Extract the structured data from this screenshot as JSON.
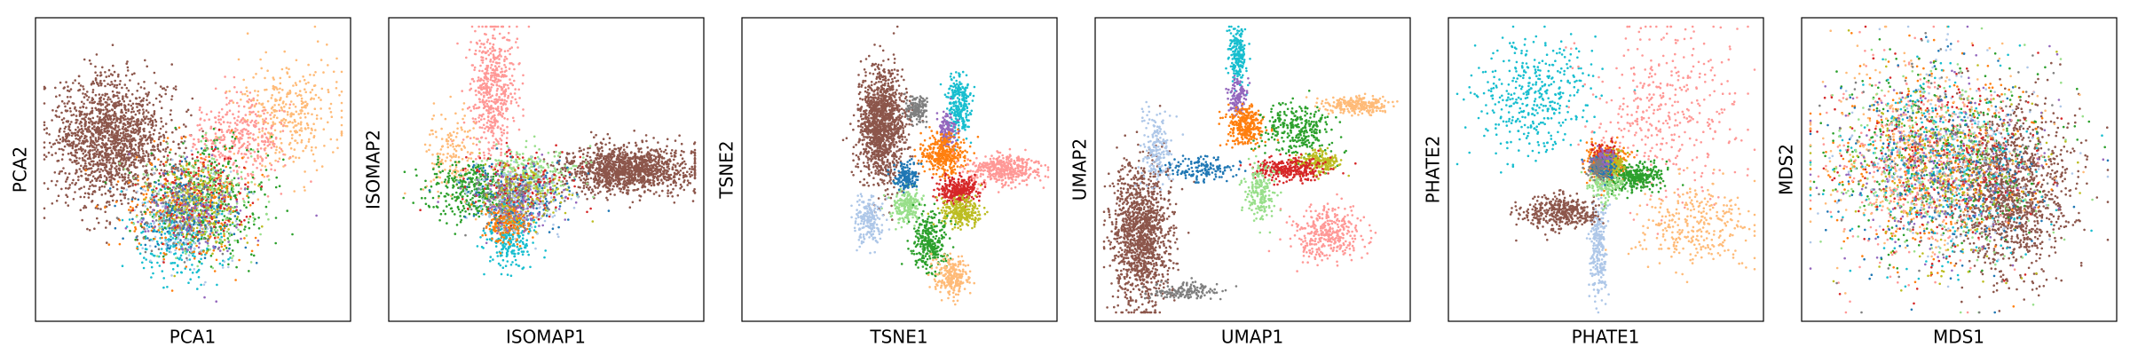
{
  "figure": {
    "background": "#ffffff",
    "palette": {
      "blue": "#1f77b4",
      "light_blue": "#aec7e8",
      "orange": "#ff7f0e",
      "light_orange": "#ffbb78",
      "green": "#2ca02c",
      "light_green": "#98df8a",
      "red": "#d62728",
      "pink": "#ff9896",
      "purple": "#9467bd",
      "brown": "#8c564b",
      "gray": "#7f7f7f",
      "olive": "#bcbd22",
      "cyan": "#17becf"
    }
  },
  "chart_data": [
    {
      "type": "scatter",
      "xlabel": "PCA1",
      "ylabel": "PCA2",
      "ticks": "none",
      "legend": "none",
      "clusters": [
        {
          "color": "brown",
          "cx": -0.55,
          "cy": 0.2,
          "sx": 0.2,
          "sy": 0.22,
          "n": 1600
        },
        {
          "color": "light_orange",
          "cx": 0.65,
          "cy": 0.4,
          "sx": 0.18,
          "sy": 0.2,
          "n": 350
        },
        {
          "color": "pink",
          "cx": 0.3,
          "cy": 0.22,
          "sx": 0.15,
          "sy": 0.16,
          "n": 350
        },
        {
          "color": "cyan",
          "cx": -0.1,
          "cy": -0.5,
          "sx": 0.15,
          "sy": 0.15,
          "n": 250
        },
        {
          "color": "green",
          "cx": 0.1,
          "cy": -0.2,
          "sx": 0.2,
          "sy": 0.2,
          "n": 350
        },
        {
          "color": "orange",
          "cx": -0.05,
          "cy": -0.25,
          "sx": 0.2,
          "sy": 0.2,
          "n": 300
        },
        {
          "color": "light_green",
          "cx": 0.05,
          "cy": -0.2,
          "sx": 0.2,
          "sy": 0.18,
          "n": 250
        },
        {
          "color": "light_blue",
          "cx": -0.05,
          "cy": -0.35,
          "sx": 0.15,
          "sy": 0.15,
          "n": 200
        },
        {
          "color": "olive",
          "cx": 0.0,
          "cy": -0.25,
          "sx": 0.15,
          "sy": 0.15,
          "n": 200
        },
        {
          "color": "blue",
          "cx": -0.05,
          "cy": -0.28,
          "sx": 0.18,
          "sy": 0.16,
          "n": 150
        },
        {
          "color": "red",
          "cx": 0.05,
          "cy": -0.22,
          "sx": 0.18,
          "sy": 0.18,
          "n": 150
        },
        {
          "color": "purple",
          "cx": 0.0,
          "cy": -0.3,
          "sx": 0.18,
          "sy": 0.18,
          "n": 120
        },
        {
          "color": "gray",
          "cx": -0.1,
          "cy": -0.25,
          "sx": 0.15,
          "sy": 0.15,
          "n": 100
        }
      ]
    },
    {
      "type": "scatter",
      "xlabel": "ISOMAP1",
      "ylabel": "ISOMAP2",
      "ticks": "none",
      "legend": "none",
      "clusters": [
        {
          "color": "pink",
          "cx": -0.35,
          "cy": 0.55,
          "sx": 0.08,
          "sy": 0.25,
          "n": 550
        },
        {
          "color": "brown",
          "cx": 0.55,
          "cy": 0.0,
          "sx": 0.22,
          "sy": 0.08,
          "n": 1300
        },
        {
          "color": "light_orange",
          "cx": -0.65,
          "cy": 0.1,
          "sx": 0.08,
          "sy": 0.15,
          "n": 150
        },
        {
          "color": "green",
          "cx": -0.5,
          "cy": -0.15,
          "sx": 0.15,
          "sy": 0.1,
          "n": 350
        },
        {
          "color": "light_green",
          "cx": -0.1,
          "cy": -0.05,
          "sx": 0.15,
          "sy": 0.1,
          "n": 300
        },
        {
          "color": "cyan",
          "cx": -0.25,
          "cy": -0.45,
          "sx": 0.08,
          "sy": 0.12,
          "n": 300
        },
        {
          "color": "orange",
          "cx": -0.25,
          "cy": -0.35,
          "sx": 0.08,
          "sy": 0.08,
          "n": 250
        },
        {
          "color": "light_blue",
          "cx": -0.2,
          "cy": -0.2,
          "sx": 0.15,
          "sy": 0.12,
          "n": 200
        },
        {
          "color": "blue",
          "cx": -0.15,
          "cy": -0.15,
          "sx": 0.2,
          "sy": 0.12,
          "n": 150
        },
        {
          "color": "red",
          "cx": -0.2,
          "cy": -0.1,
          "sx": 0.2,
          "sy": 0.12,
          "n": 150
        },
        {
          "color": "purple",
          "cx": -0.2,
          "cy": -0.2,
          "sx": 0.15,
          "sy": 0.12,
          "n": 120
        },
        {
          "color": "olive",
          "cx": -0.15,
          "cy": -0.15,
          "sx": 0.15,
          "sy": 0.1,
          "n": 120
        },
        {
          "color": "gray",
          "cx": -0.25,
          "cy": -0.2,
          "sx": 0.15,
          "sy": 0.12,
          "n": 100
        }
      ]
    },
    {
      "type": "scatter",
      "xlabel": "TSNE1",
      "ylabel": "TSNE2",
      "ticks": "none",
      "legend": "none",
      "clusters": [
        {
          "color": "brown",
          "cx": -0.12,
          "cy": 0.3,
          "sx": 0.08,
          "sy": 0.2,
          "n": 1300
        },
        {
          "color": "gray",
          "cx": 0.12,
          "cy": 0.42,
          "sx": 0.04,
          "sy": 0.05,
          "n": 150
        },
        {
          "color": "cyan",
          "cx": 0.4,
          "cy": 0.45,
          "sx": 0.04,
          "sy": 0.1,
          "n": 250
        },
        {
          "color": "purple",
          "cx": 0.33,
          "cy": 0.28,
          "sx": 0.03,
          "sy": 0.06,
          "n": 120
        },
        {
          "color": "orange",
          "cx": 0.3,
          "cy": 0.1,
          "sx": 0.07,
          "sy": 0.07,
          "n": 350
        },
        {
          "color": "pink",
          "cx": 0.7,
          "cy": 0.0,
          "sx": 0.12,
          "sy": 0.05,
          "n": 400
        },
        {
          "color": "red",
          "cx": 0.4,
          "cy": -0.15,
          "sx": 0.07,
          "sy": 0.05,
          "n": 300
        },
        {
          "color": "olive",
          "cx": 0.42,
          "cy": -0.3,
          "sx": 0.07,
          "sy": 0.05,
          "n": 250
        },
        {
          "color": "light_green",
          "cx": 0.05,
          "cy": -0.25,
          "sx": 0.05,
          "sy": 0.06,
          "n": 200
        },
        {
          "color": "blue",
          "cx": 0.05,
          "cy": -0.05,
          "sx": 0.04,
          "sy": 0.05,
          "n": 150
        },
        {
          "color": "light_blue",
          "cx": -0.2,
          "cy": -0.35,
          "sx": 0.05,
          "sy": 0.08,
          "n": 200
        },
        {
          "color": "green",
          "cx": 0.2,
          "cy": -0.5,
          "sx": 0.06,
          "sy": 0.1,
          "n": 300
        },
        {
          "color": "light_orange",
          "cx": 0.35,
          "cy": -0.75,
          "sx": 0.06,
          "sy": 0.07,
          "n": 250
        }
      ]
    },
    {
      "type": "scatter",
      "xlabel": "UMAP1",
      "ylabel": "UMAP2",
      "ticks": "none",
      "legend": "none",
      "clusters": [
        {
          "color": "brown",
          "cx": -0.75,
          "cy": -0.45,
          "sx": 0.1,
          "sy": 0.25,
          "n": 1300
        },
        {
          "color": "gray",
          "cx": -0.45,
          "cy": -0.85,
          "sx": 0.12,
          "sy": 0.03,
          "n": 150
        },
        {
          "color": "light_blue",
          "cx": -0.65,
          "cy": 0.15,
          "sx": 0.05,
          "sy": 0.12,
          "n": 200
        },
        {
          "color": "blue",
          "cx": -0.35,
          "cy": 0.0,
          "sx": 0.12,
          "sy": 0.04,
          "n": 150
        },
        {
          "color": "cyan",
          "cx": -0.1,
          "cy": 0.8,
          "sx": 0.03,
          "sy": 0.1,
          "n": 200
        },
        {
          "color": "purple",
          "cx": -0.1,
          "cy": 0.5,
          "sx": 0.03,
          "sy": 0.08,
          "n": 120
        },
        {
          "color": "orange",
          "cx": -0.05,
          "cy": 0.3,
          "sx": 0.06,
          "sy": 0.07,
          "n": 300
        },
        {
          "color": "green",
          "cx": 0.3,
          "cy": 0.28,
          "sx": 0.12,
          "sy": 0.1,
          "n": 300
        },
        {
          "color": "light_orange",
          "cx": 0.7,
          "cy": 0.45,
          "sx": 0.12,
          "sy": 0.03,
          "n": 250
        },
        {
          "color": "olive",
          "cx": 0.45,
          "cy": 0.05,
          "sx": 0.07,
          "sy": 0.04,
          "n": 200
        },
        {
          "color": "red",
          "cx": 0.25,
          "cy": 0.0,
          "sx": 0.12,
          "sy": 0.04,
          "n": 300
        },
        {
          "color": "light_green",
          "cx": 0.05,
          "cy": -0.15,
          "sx": 0.05,
          "sy": 0.1,
          "n": 200
        },
        {
          "color": "pink",
          "cx": 0.5,
          "cy": -0.45,
          "sx": 0.12,
          "sy": 0.1,
          "n": 350
        }
      ]
    },
    {
      "type": "scatter",
      "xlabel": "PHATE1",
      "ylabel": "PHATE2",
      "ticks": "none",
      "legend": "none",
      "clusters": [
        {
          "color": "cyan",
          "cx": -0.5,
          "cy": 0.5,
          "sx": 0.2,
          "sy": 0.2,
          "n": 400
        },
        {
          "color": "pink",
          "cx": 0.4,
          "cy": 0.4,
          "sx": 0.25,
          "sy": 0.3,
          "n": 400
        },
        {
          "color": "orange",
          "cx": 0.0,
          "cy": 0.05,
          "sx": 0.06,
          "sy": 0.06,
          "n": 400
        },
        {
          "color": "light_orange",
          "cx": 0.6,
          "cy": -0.4,
          "sx": 0.2,
          "sy": 0.15,
          "n": 300
        },
        {
          "color": "green",
          "cx": 0.2,
          "cy": -0.05,
          "sx": 0.1,
          "sy": 0.05,
          "n": 300
        },
        {
          "color": "light_blue",
          "cx": -0.05,
          "cy": -0.55,
          "sx": 0.03,
          "sy": 0.2,
          "n": 250
        },
        {
          "color": "brown",
          "cx": -0.3,
          "cy": -0.3,
          "sx": 0.12,
          "sy": 0.06,
          "n": 400
        },
        {
          "color": "light_green",
          "cx": 0.0,
          "cy": -0.1,
          "sx": 0.06,
          "sy": 0.06,
          "n": 150
        },
        {
          "color": "red",
          "cx": 0.0,
          "cy": 0.1,
          "sx": 0.04,
          "sy": 0.04,
          "n": 120
        },
        {
          "color": "olive",
          "cx": 0.05,
          "cy": 0.05,
          "sx": 0.04,
          "sy": 0.04,
          "n": 120
        },
        {
          "color": "blue",
          "cx": -0.02,
          "cy": 0.02,
          "sx": 0.04,
          "sy": 0.04,
          "n": 100
        },
        {
          "color": "purple",
          "cx": -0.02,
          "cy": 0.08,
          "sx": 0.04,
          "sy": 0.04,
          "n": 80
        },
        {
          "color": "gray",
          "cx": -0.05,
          "cy": 0.0,
          "sx": 0.04,
          "sy": 0.04,
          "n": 80
        }
      ]
    },
    {
      "type": "scatter",
      "xlabel": "MDS1",
      "ylabel": "MDS2",
      "ticks": "none",
      "legend": "none",
      "clusters": [
        {
          "color": "brown",
          "cx": 0.35,
          "cy": -0.15,
          "sx": 0.2,
          "sy": 0.28,
          "n": 1300
        },
        {
          "color": "orange",
          "cx": -0.2,
          "cy": 0.05,
          "sx": 0.35,
          "sy": 0.35,
          "n": 350
        },
        {
          "color": "green",
          "cx": -0.15,
          "cy": 0.1,
          "sx": 0.35,
          "sy": 0.35,
          "n": 350
        },
        {
          "color": "pink",
          "cx": -0.3,
          "cy": 0.05,
          "sx": 0.3,
          "sy": 0.35,
          "n": 350
        },
        {
          "color": "light_orange",
          "cx": -0.25,
          "cy": 0.1,
          "sx": 0.35,
          "sy": 0.35,
          "n": 300
        },
        {
          "color": "cyan",
          "cx": -0.1,
          "cy": 0.0,
          "sx": 0.35,
          "sy": 0.35,
          "n": 300
        },
        {
          "color": "light_blue",
          "cx": -0.1,
          "cy": 0.05,
          "sx": 0.35,
          "sy": 0.35,
          "n": 250
        },
        {
          "color": "light_green",
          "cx": -0.15,
          "cy": 0.0,
          "sx": 0.35,
          "sy": 0.35,
          "n": 250
        },
        {
          "color": "red",
          "cx": -0.1,
          "cy": 0.05,
          "sx": 0.35,
          "sy": 0.35,
          "n": 250
        },
        {
          "color": "olive",
          "cx": -0.1,
          "cy": 0.0,
          "sx": 0.35,
          "sy": 0.35,
          "n": 200
        },
        {
          "color": "purple",
          "cx": -0.15,
          "cy": 0.05,
          "sx": 0.35,
          "sy": 0.35,
          "n": 200
        },
        {
          "color": "blue",
          "cx": -0.1,
          "cy": 0.0,
          "sx": 0.35,
          "sy": 0.35,
          "n": 200
        },
        {
          "color": "gray",
          "cx": -0.1,
          "cy": 0.05,
          "sx": 0.35,
          "sy": 0.35,
          "n": 150
        }
      ]
    }
  ]
}
